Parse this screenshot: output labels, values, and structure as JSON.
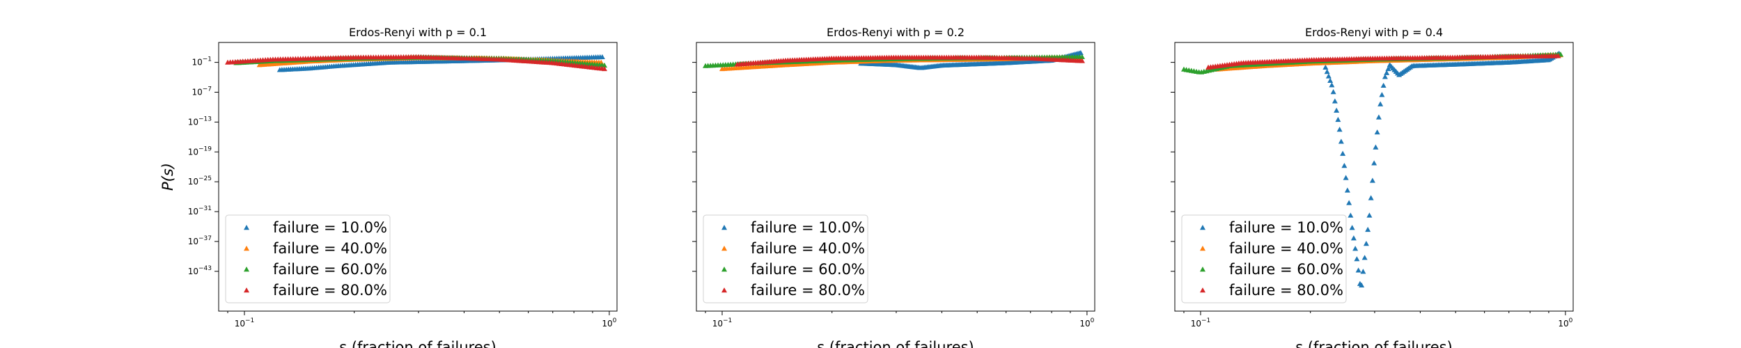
{
  "chart_data": [
    {
      "type": "scatter",
      "title": "Erdos-Renyi with p = 0.1",
      "xlabel": "s (fraction of failures)",
      "ylabel": "P(s)",
      "xscale": "log",
      "yscale": "log",
      "xlim": [
        0.085,
        1.05
      ],
      "ylim_exp": [
        -49,
        5
      ],
      "xticks": [
        {
          "value": 0.1,
          "base": "10",
          "exp": "−1"
        },
        {
          "value": 1,
          "base": "10",
          "exp": "0"
        }
      ],
      "yticks": [
        {
          "exp": 1,
          "label_exp": "−1"
        },
        {
          "exp": -5,
          "label_exp": "−7"
        },
        {
          "exp": -11,
          "label_exp": "−13"
        },
        {
          "exp": -17,
          "label_exp": "−19"
        },
        {
          "exp": -23,
          "label_exp": "−25"
        },
        {
          "exp": -29,
          "label_exp": "−31"
        },
        {
          "exp": -35,
          "label_exp": "−37"
        },
        {
          "exp": -41,
          "label_exp": "−43"
        }
      ],
      "show_ytick_labels": true,
      "legend_position": "lower-left",
      "series": [
        {
          "name": "failure = 10.0%",
          "color": "#1f77b4",
          "marker": "triangle",
          "points": [
            [
              0.125,
              -0.5
            ],
            [
              0.15,
              -0.2
            ],
            [
              0.18,
              0.3
            ],
            [
              0.25,
              1.0
            ],
            [
              0.4,
              1.3
            ],
            [
              0.6,
              1.6
            ],
            [
              0.8,
              1.9
            ],
            [
              0.97,
              2.1
            ]
          ]
        },
        {
          "name": "failure = 40.0%",
          "color": "#ff7f0e",
          "marker": "triangle",
          "points": [
            [
              0.11,
              0.5
            ],
            [
              0.15,
              1.2
            ],
            [
              0.2,
              1.6
            ],
            [
              0.3,
              1.9
            ],
            [
              0.5,
              1.8
            ],
            [
              0.7,
              1.4
            ],
            [
              0.95,
              1.0
            ]
          ]
        },
        {
          "name": "failure = 60.0%",
          "color": "#2ca02c",
          "marker": "triangle",
          "points": [
            [
              0.095,
              0.9
            ],
            [
              0.12,
              1.3
            ],
            [
              0.2,
              1.8
            ],
            [
              0.3,
              2.0
            ],
            [
              0.5,
              1.8
            ],
            [
              0.7,
              1.3
            ],
            [
              0.97,
              0.4
            ]
          ]
        },
        {
          "name": "failure = 80.0%",
          "color": "#d62728",
          "marker": "triangle",
          "points": [
            [
              0.09,
              1.0
            ],
            [
              0.12,
              1.6
            ],
            [
              0.2,
              2.0
            ],
            [
              0.3,
              2.1
            ],
            [
              0.5,
              1.6
            ],
            [
              0.7,
              0.9
            ],
            [
              0.97,
              -0.3
            ]
          ]
        }
      ]
    },
    {
      "type": "scatter",
      "title": "Erdos-Renyi with p = 0.2",
      "xlabel": "s (fraction of failures)",
      "ylabel": "",
      "xscale": "log",
      "yscale": "log",
      "xlim": [
        0.085,
        1.05
      ],
      "ylim_exp": [
        -49,
        5
      ],
      "xticks": [
        {
          "value": 0.1,
          "base": "10",
          "exp": "−1"
        },
        {
          "value": 1,
          "base": "10",
          "exp": "0"
        }
      ],
      "yticks": [
        {
          "exp": 1,
          "label_exp": "−1"
        },
        {
          "exp": -5,
          "label_exp": "−7"
        },
        {
          "exp": -11,
          "label_exp": "−13"
        },
        {
          "exp": -17,
          "label_exp": "−19"
        },
        {
          "exp": -23,
          "label_exp": "−25"
        },
        {
          "exp": -29,
          "label_exp": "−31"
        },
        {
          "exp": -35,
          "label_exp": "−37"
        },
        {
          "exp": -41,
          "label_exp": "−43"
        }
      ],
      "show_ytick_labels": false,
      "legend_position": "lower-left",
      "series": [
        {
          "name": "failure = 10.0%",
          "color": "#1f77b4",
          "marker": "triangle",
          "points": [
            [
              0.24,
              0.8
            ],
            [
              0.3,
              0.5
            ],
            [
              0.35,
              -0.1
            ],
            [
              0.4,
              0.4
            ],
            [
              0.6,
              0.9
            ],
            [
              0.8,
              1.4
            ],
            [
              0.97,
              3.0
            ]
          ]
        },
        {
          "name": "failure = 40.0%",
          "color": "#ff7f0e",
          "marker": "triangle",
          "points": [
            [
              0.1,
              -0.3
            ],
            [
              0.15,
              0.5
            ],
            [
              0.2,
              1.0
            ],
            [
              0.3,
              1.4
            ],
            [
              0.5,
              1.6
            ],
            [
              0.7,
              1.8
            ],
            [
              0.97,
              1.9
            ]
          ]
        },
        {
          "name": "failure = 60.0%",
          "color": "#2ca02c",
          "marker": "triangle",
          "points": [
            [
              0.09,
              0.3
            ],
            [
              0.12,
              0.8
            ],
            [
              0.2,
              1.4
            ],
            [
              0.3,
              1.7
            ],
            [
              0.5,
              1.9
            ],
            [
              0.7,
              2.0
            ],
            [
              0.97,
              2.1
            ]
          ]
        },
        {
          "name": "failure = 80.0%",
          "color": "#d62728",
          "marker": "triangle",
          "points": [
            [
              0.11,
              0.6
            ],
            [
              0.15,
              1.4
            ],
            [
              0.2,
              1.8
            ],
            [
              0.3,
              2.0
            ],
            [
              0.5,
              2.0
            ],
            [
              0.7,
              1.8
            ],
            [
              0.97,
              1.3
            ]
          ]
        }
      ]
    },
    {
      "type": "scatter",
      "title": "Erdos-Renyi with p = 0.4",
      "xlabel": "s (fraction of failures)",
      "ylabel": "",
      "xscale": "log",
      "yscale": "log",
      "xlim": [
        0.085,
        1.05
      ],
      "ylim_exp": [
        -49,
        5
      ],
      "xticks": [
        {
          "value": 0.1,
          "base": "10",
          "exp": "−1"
        },
        {
          "value": 1,
          "base": "10",
          "exp": "0"
        }
      ],
      "yticks": [
        {
          "exp": 1,
          "label_exp": "−1"
        },
        {
          "exp": -5,
          "label_exp": "−7"
        },
        {
          "exp": -11,
          "label_exp": "−13"
        },
        {
          "exp": -17,
          "label_exp": "−19"
        },
        {
          "exp": -23,
          "label_exp": "−25"
        },
        {
          "exp": -29,
          "label_exp": "−31"
        },
        {
          "exp": -35,
          "label_exp": "−37"
        },
        {
          "exp": -41,
          "label_exp": "−43"
        }
      ],
      "show_ytick_labels": false,
      "legend_position": "lower-left",
      "series": [
        {
          "name": "failure = 10.0%",
          "color": "#1f77b4",
          "marker": "triangle",
          "points": [
            [
              0.22,
              0.0
            ],
            [
              0.23,
              -4
            ],
            [
              0.24,
              -12
            ],
            [
              0.25,
              -22
            ],
            [
              0.26,
              -32
            ],
            [
              0.27,
              -40
            ],
            [
              0.275,
              -45
            ],
            [
              0.28,
              -40
            ],
            [
              0.29,
              -30
            ],
            [
              0.3,
              -18
            ],
            [
              0.31,
              -8
            ],
            [
              0.32,
              -2
            ],
            [
              0.33,
              0.5
            ],
            [
              0.35,
              -1.5
            ],
            [
              0.38,
              0.3
            ],
            [
              0.5,
              0.6
            ],
            [
              0.7,
              1.0
            ],
            [
              0.9,
              1.5
            ],
            [
              0.97,
              3.0
            ]
          ]
        },
        {
          "name": "failure = 40.0%",
          "color": "#ff7f0e",
          "marker": "triangle",
          "points": [
            [
              0.11,
              -0.4
            ],
            [
              0.15,
              0.3
            ],
            [
              0.2,
              0.8
            ],
            [
              0.3,
              1.3
            ],
            [
              0.5,
              1.7
            ],
            [
              0.7,
              2.0
            ],
            [
              0.97,
              2.5
            ]
          ]
        },
        {
          "name": "failure = 60.0%",
          "color": "#2ca02c",
          "marker": "triangle",
          "points": [
            [
              0.09,
              -0.4
            ],
            [
              0.1,
              -1.0
            ],
            [
              0.12,
              0.3
            ],
            [
              0.2,
              1.2
            ],
            [
              0.3,
              1.6
            ],
            [
              0.5,
              1.9
            ],
            [
              0.7,
              2.2
            ],
            [
              0.97,
              2.6
            ]
          ]
        },
        {
          "name": "failure = 80.0%",
          "color": "#d62728",
          "marker": "triangle",
          "points": [
            [
              0.105,
              0.0
            ],
            [
              0.13,
              0.9
            ],
            [
              0.2,
              1.5
            ],
            [
              0.3,
              1.8
            ],
            [
              0.5,
              2.0
            ],
            [
              0.7,
              2.2
            ],
            [
              0.97,
              2.3
            ]
          ]
        }
      ]
    }
  ]
}
